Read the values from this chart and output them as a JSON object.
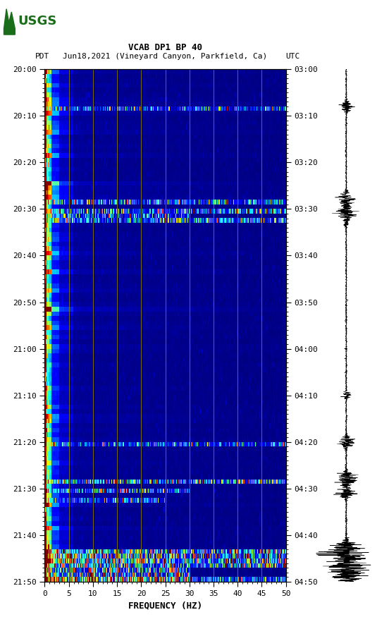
{
  "title_line1": "VCAB DP1 BP 40",
  "title_line2_left": "PDT",
  "title_line2_mid": "Jun18,2021 (Vineyard Canyon, Parkfield, Ca)",
  "title_line2_right": "UTC",
  "xlabel": "FREQUENCY (HZ)",
  "freq_min": 0,
  "freq_max": 50,
  "left_times": [
    "20:00",
    "20:10",
    "20:20",
    "20:30",
    "20:40",
    "20:50",
    "21:00",
    "21:10",
    "21:20",
    "21:30",
    "21:40",
    "21:50"
  ],
  "right_times": [
    "03:00",
    "03:10",
    "03:20",
    "03:30",
    "03:40",
    "03:50",
    "04:00",
    "04:10",
    "04:20",
    "04:30",
    "04:40",
    "04:50"
  ],
  "xticks": [
    0,
    5,
    10,
    15,
    20,
    25,
    30,
    35,
    40,
    45,
    50
  ],
  "vertical_lines_x": [
    5,
    10,
    15,
    20,
    25,
    30,
    35,
    40,
    45
  ],
  "vertical_line_color": "#8B8000",
  "cmap": "jet",
  "fig_bg": "#ffffff",
  "n_time": 110,
  "n_freq": 500,
  "usgs_green": "#1a6e1a"
}
